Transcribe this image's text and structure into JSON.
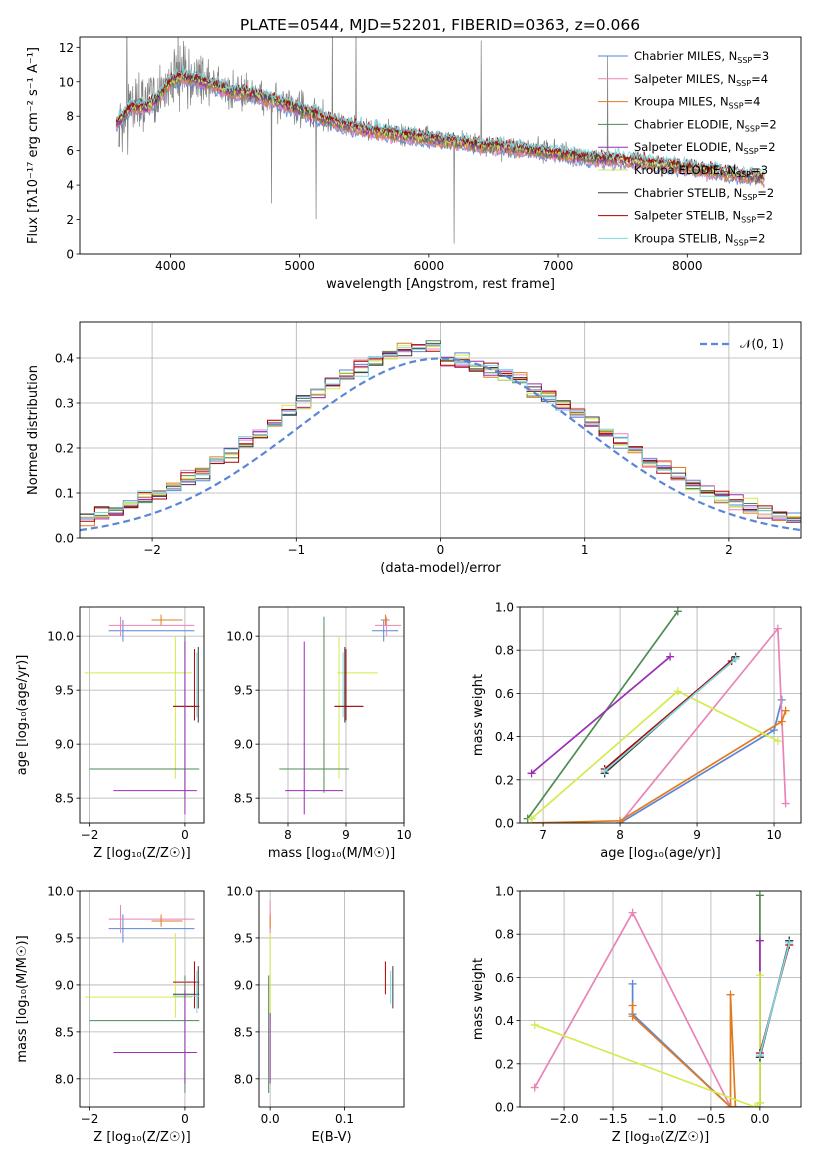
{
  "figure_title": "PLATE=0544, MJD=52201, FIBERID=0363, z=0.066",
  "colors": {
    "Chabrier MILES": "#5b86d6",
    "Salpeter MILES": "#e884b6",
    "Kroupa MILES": "#e07b22",
    "Chabrier ELODIE": "#4f8a52",
    "Salpeter ELODIE": "#9b2fb5",
    "Kroupa ELODIE": "#d6ea4e",
    "Chabrier STELIB": "#3a3a3a",
    "Salpeter STELIB": "#b00000",
    "Kroupa STELIB": "#7dd8e0",
    "data": "#808080",
    "normal": "#5b86d6"
  },
  "chart_data": [
    {
      "id": "spectrum",
      "type": "line",
      "title": "",
      "xlabel": "wavelength [Angstrom, rest frame]",
      "ylabel": "Flux [fλ10⁻¹⁷ erg cm⁻² s⁻¹ A⁻¹]",
      "xlim": [
        3300,
        8880
      ],
      "ylim": [
        0,
        12.6
      ],
      "xticks": [
        4000,
        5000,
        6000,
        7000,
        8000
      ],
      "yticks": [
        0,
        2,
        4,
        6,
        8,
        10,
        12
      ],
      "legend_position": "top-right",
      "legend": [
        {
          "name": "Chabrier MILES",
          "nssp": "3"
        },
        {
          "name": "Salpeter MILES",
          "nssp": "4"
        },
        {
          "name": "Kroupa MILES",
          "nssp": "4"
        },
        {
          "name": "Chabrier ELODIE",
          "nssp": "2"
        },
        {
          "name": "Salpeter ELODIE",
          "nssp": "2"
        },
        {
          "name": "Kroupa ELODIE",
          "nssp": "3"
        },
        {
          "name": "Chabrier STELIB",
          "nssp": "2"
        },
        {
          "name": "Salpeter STELIB",
          "nssp": "2"
        },
        {
          "name": "Kroupa STELIB",
          "nssp": "2"
        }
      ],
      "data_curve": {
        "x": [
          3600,
          3700,
          3800,
          3900,
          4000,
          4100,
          4200,
          4300,
          4400,
          4500,
          4600,
          4800,
          5000,
          5200,
          5400,
          5600,
          5800,
          6000,
          6200,
          6400,
          6600,
          6800,
          7000,
          7200,
          7400
        ],
        "y": [
          7.5,
          8.6,
          8.9,
          9.3,
          10.2,
          10.3,
          10.2,
          10.0,
          9.6,
          9.5,
          9.3,
          8.9,
          8.4,
          7.8,
          7.5,
          7.2,
          7.0,
          6.8,
          6.6,
          6.4,
          6.2,
          6.1,
          5.9,
          5.7,
          5.5
        ]
      },
      "model_curve": {
        "x": [
          3580,
          3700,
          3800,
          3900,
          4000,
          4100,
          4200,
          4300,
          4400,
          4500,
          4600,
          4800,
          5000,
          5200,
          5400,
          5600,
          5800,
          6000,
          6200,
          6400,
          6600,
          6800,
          7000,
          7200,
          7400,
          7600,
          7800,
          8000,
          8200,
          8400,
          8600
        ],
        "y": [
          7.6,
          8.5,
          8.5,
          9.0,
          10.0,
          10.3,
          10.1,
          9.9,
          9.6,
          9.4,
          9.3,
          8.9,
          8.4,
          7.8,
          7.4,
          7.1,
          6.9,
          6.7,
          6.5,
          6.3,
          6.2,
          6.0,
          5.8,
          5.6,
          5.5,
          5.4,
          5.2,
          5.0,
          4.8,
          4.6,
          4.4
        ]
      }
    },
    {
      "id": "residuals",
      "type": "histogram",
      "xlabel": "(data-model)/error",
      "ylabel": "Normed distribution",
      "xlim": [
        -2.5,
        2.5
      ],
      "ylim": [
        0,
        0.48
      ],
      "xticks": [
        -2,
        -1,
        0,
        1,
        2
      ],
      "yticks": [
        0.0,
        0.1,
        0.2,
        0.3,
        0.4
      ],
      "grid": true,
      "legend_position": "top-right",
      "legend": [
        "𝒩(0, 1)"
      ],
      "bin_edges_start": -2.5,
      "bin_width": 0.1,
      "bin_count": 50
    },
    {
      "id": "age-vs-Z",
      "type": "errorbar",
      "xlabel": "Z [log₁₀(Z/Z☉)]",
      "ylabel": "age  [log₁₀(age/yr)]",
      "xlim": [
        -2.2,
        0.4
      ],
      "ylim": [
        8.27,
        10.27
      ],
      "xticks": [
        -2,
        0
      ],
      "yticks": [
        8.5,
        9.0,
        9.5,
        10.0,
        10.5
      ],
      "grid": true
    },
    {
      "id": "age-vs-mass",
      "type": "errorbar",
      "xlabel": "mass [log₁₀(M/M☉)]",
      "ylabel": "",
      "xlim": [
        7.5,
        10.0
      ],
      "ylim": [
        8.27,
        10.27
      ],
      "xticks": [
        8,
        9,
        10
      ],
      "yticks": [
        8.5,
        9.0,
        9.5,
        10.0,
        10.5
      ],
      "grid": true
    },
    {
      "id": "massweight-vs-age",
      "type": "line",
      "xlabel": "age  [log₁₀(age/yr)]",
      "ylabel": "mass weight",
      "xlim": [
        6.7,
        10.35
      ],
      "ylim": [
        0,
        1
      ],
      "xticks": [
        7,
        8,
        9,
        10
      ],
      "yticks": [
        0.0,
        0.2,
        0.4,
        0.6,
        0.8,
        1.0
      ],
      "grid": true,
      "series": [
        {
          "name": "Chabrier MILES",
          "x": [
            8.0,
            10.0,
            10.1
          ],
          "y": [
            0.0,
            0.43,
            0.57
          ]
        },
        {
          "name": "Salpeter MILES",
          "x": [
            8.0,
            10.05,
            10.15
          ],
          "y": [
            0.0,
            0.9,
            0.09
          ]
        },
        {
          "name": "Kroupa MILES",
          "x": [
            6.85,
            8.0,
            10.1,
            10.15
          ],
          "y": [
            0.0,
            0.01,
            0.47,
            0.52
          ]
        },
        {
          "name": "Chabrier ELODIE",
          "x": [
            6.8,
            8.75
          ],
          "y": [
            0.02,
            0.98
          ]
        },
        {
          "name": "Salpeter ELODIE",
          "x": [
            6.85,
            8.65
          ],
          "y": [
            0.23,
            0.77
          ]
        },
        {
          "name": "Kroupa ELODIE",
          "x": [
            6.85,
            8.75,
            10.05
          ],
          "y": [
            0.02,
            0.61,
            0.38
          ]
        },
        {
          "name": "Chabrier STELIB",
          "x": [
            7.8,
            9.5
          ],
          "y": [
            0.23,
            0.77
          ]
        },
        {
          "name": "Salpeter STELIB",
          "x": [
            7.8,
            9.45
          ],
          "y": [
            0.25,
            0.75
          ]
        },
        {
          "name": "Kroupa STELIB",
          "x": [
            7.8,
            9.5
          ],
          "y": [
            0.24,
            0.76
          ]
        }
      ]
    },
    {
      "id": "mass-vs-Z",
      "type": "errorbar",
      "xlabel": "Z [log₁₀(Z/Z☉)]",
      "ylabel": "mass [log₁₀(M/M☉)]",
      "xlim": [
        -2.2,
        0.4
      ],
      "ylim": [
        7.7,
        10.0
      ],
      "xticks": [
        -2,
        0
      ],
      "yticks": [
        8.0,
        8.5,
        9.0,
        9.5,
        10.0
      ],
      "grid": true
    },
    {
      "id": "mass-vs-EBV",
      "type": "errorbar",
      "xlabel": "E(B-V)",
      "ylabel": "",
      "xlim": [
        -0.015,
        0.18
      ],
      "ylim": [
        7.7,
        10.0
      ],
      "xticks": [
        0.0,
        0.1
      ],
      "yticks": [
        8.0,
        8.5,
        9.0,
        9.5,
        10.0
      ],
      "grid": true
    },
    {
      "id": "massweight-vs-Z",
      "type": "line",
      "xlabel": "Z [log₁₀(Z/Z☉)]",
      "ylabel": "mass weight",
      "xlim": [
        -2.45,
        0.42
      ],
      "ylim": [
        0,
        1
      ],
      "xticks": [
        -2.0,
        -1.5,
        -1.0,
        -0.5,
        0.0
      ],
      "yticks": [
        0.0,
        0.2,
        0.4,
        0.6,
        0.8,
        1.0
      ],
      "grid": true,
      "series": [
        {
          "name": "Chabrier MILES",
          "x": [
            -1.3,
            -1.3,
            -0.3,
            0.0,
            0.0,
            0.3
          ],
          "y": [
            0.57,
            0.43,
            0.0,
            0.0,
            0.23,
            0.77
          ]
        },
        {
          "name": "Salpeter MILES",
          "x": [
            -2.3,
            -1.3,
            -0.3
          ],
          "y": [
            0.09,
            0.9,
            0.0
          ]
        },
        {
          "name": "Kroupa MILES",
          "x": [
            -1.3,
            -1.3,
            -0.3,
            -0.3,
            -0.25
          ],
          "y": [
            0.47,
            0.42,
            0.0,
            0.52,
            0.0
          ]
        },
        {
          "name": "Chabrier ELODIE",
          "x": [
            0.0,
            0.0
          ],
          "y": [
            0.02,
            0.98
          ]
        },
        {
          "name": "Salpeter ELODIE",
          "x": [
            0.0,
            0.0
          ],
          "y": [
            0.23,
            0.77
          ]
        },
        {
          "name": "Kroupa ELODIE",
          "x": [
            -2.3,
            -0.05,
            0.0,
            0.0
          ],
          "y": [
            0.38,
            0.0,
            0.02,
            0.61
          ]
        },
        {
          "name": "Chabrier STELIB",
          "x": [
            0.0,
            0.3
          ],
          "y": [
            0.23,
            0.77
          ]
        },
        {
          "name": "Salpeter STELIB",
          "x": [
            0.0,
            0.3
          ],
          "y": [
            0.25,
            0.75
          ]
        },
        {
          "name": "Kroupa STELIB",
          "x": [
            0.0,
            0.3
          ],
          "y": [
            0.24,
            0.76
          ]
        }
      ]
    }
  ]
}
